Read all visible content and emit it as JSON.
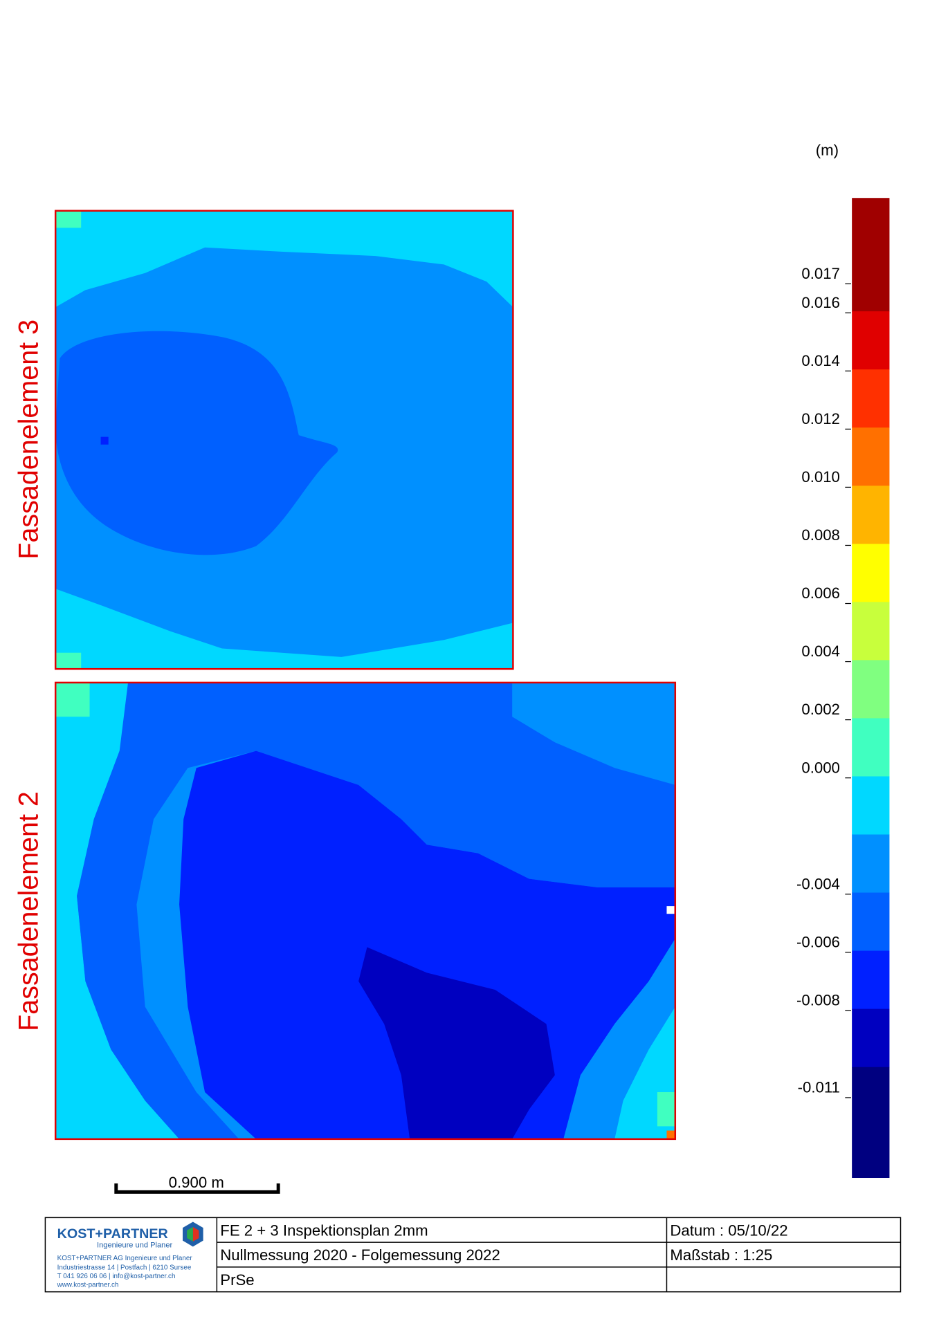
{
  "unit": "(m)",
  "colorbar": {
    "lim": [
      -0.0141,
      0.0196
    ],
    "bounds": [
      0.0196,
      0.0157,
      0.0137,
      0.0117,
      0.0097,
      0.0077,
      0.0057,
      0.0037,
      0.0017,
      -0.0003,
      -0.0023,
      -0.0043,
      -0.0063,
      -0.0083,
      -0.0103,
      -0.0141
    ],
    "colors": [
      "#a00000",
      "#e00000",
      "#ff3000",
      "#ff7000",
      "#ffb400",
      "#ffff00",
      "#c8ff3c",
      "#80ff80",
      "#40ffc0",
      "#00d8ff",
      "#0090ff",
      "#0060ff",
      "#0020ff",
      "#0000c0",
      "#000080"
    ],
    "ticks": [
      {
        "value": 0.017,
        "label": "0.017"
      },
      {
        "value": 0.016,
        "label": "0.016"
      },
      {
        "value": 0.014,
        "label": "0.014"
      },
      {
        "value": 0.012,
        "label": "0.012"
      },
      {
        "value": 0.01,
        "label": "0.010"
      },
      {
        "value": 0.008,
        "label": "0.008"
      },
      {
        "value": 0.006,
        "label": "0.006"
      },
      {
        "value": 0.004,
        "label": "0.004"
      },
      {
        "value": 0.002,
        "label": "0.002"
      },
      {
        "value": 0,
        "label": "0.000"
      },
      {
        "value": -0.004,
        "label": "-0.004"
      },
      {
        "value": -0.006,
        "label": "-0.006"
      },
      {
        "value": -0.008,
        "label": "-0.008"
      },
      {
        "value": -0.011,
        "label": "-0.011"
      }
    ]
  },
  "panels": [
    {
      "label": "Fassadenelement 3"
    },
    {
      "label": "Fassadenelement 2"
    }
  ],
  "scale_bar": "0.900 m",
  "title_block": {
    "company": "KOST+PARTNER",
    "tagline": "Ingenieure und Planer",
    "address": [
      "KOST+PARTNER AG Ingenieure und Planer",
      "Industriestrasse 14 | Postfach | 6210 Sursee",
      "T 041 926 06 06 | info@kost-partner.ch",
      "www.kost-partner.ch"
    ],
    "rows": [
      [
        "FE 2 + 3 Inspektionsplan 2mm",
        "Datum : 05/10/22"
      ],
      [
        "Nullmessung 2020 - Folgemessung 2022",
        "Maßstab : 1:25"
      ],
      [
        "PrSe"
      ]
    ]
  }
}
